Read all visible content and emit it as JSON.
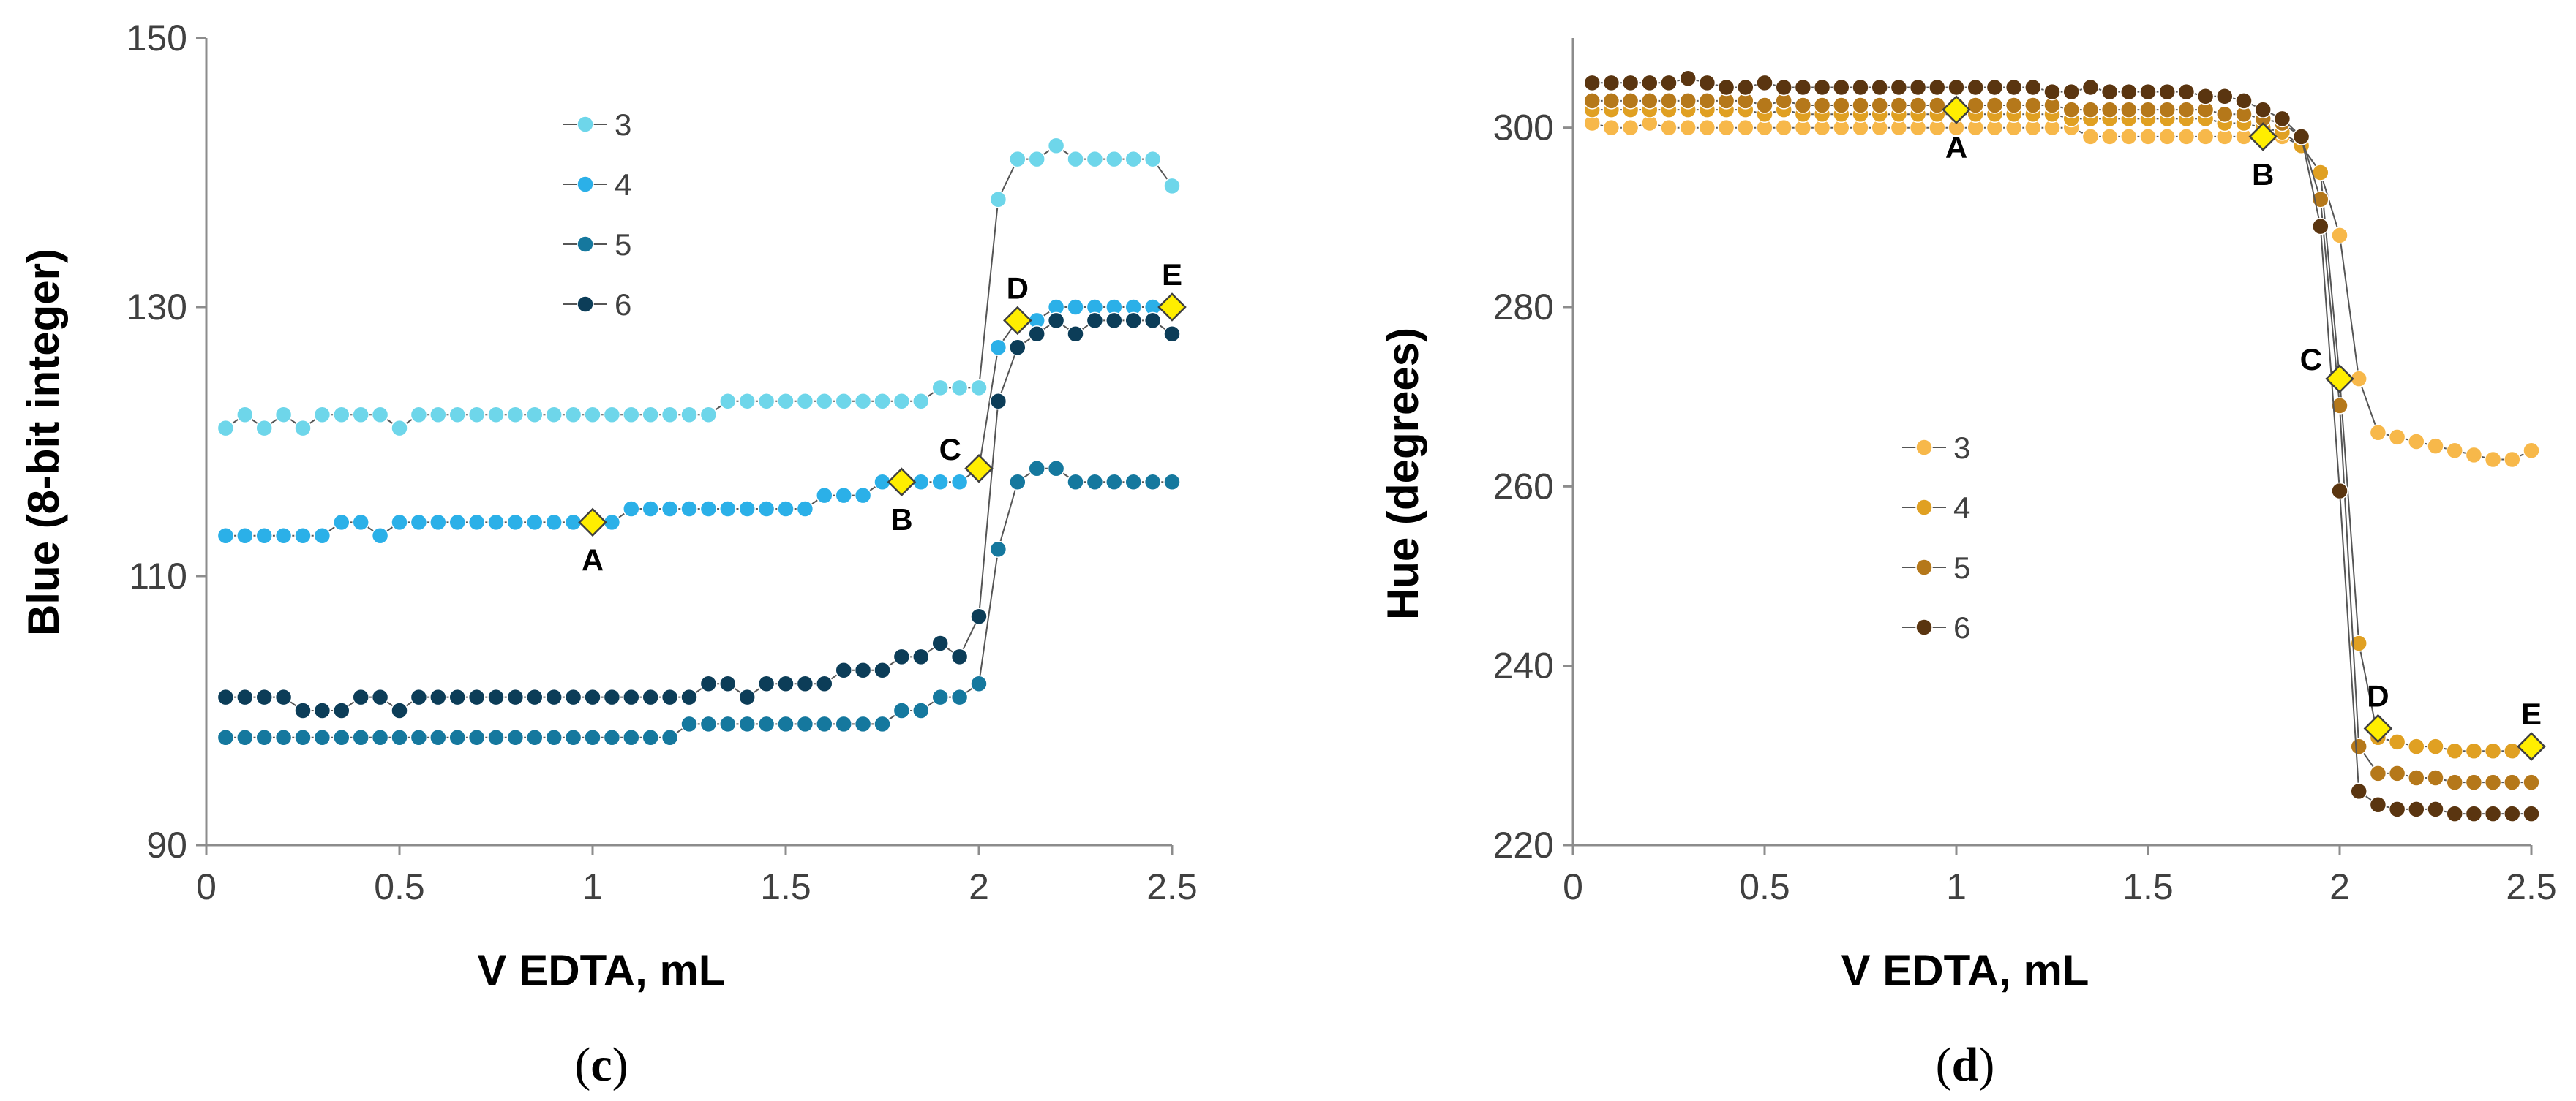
{
  "chart_data": [
    {
      "type": "line",
      "id": "c",
      "caption_open": "(",
      "caption_letter": "c",
      "caption_close": ")",
      "xlabel": "V EDTA, mL",
      "ylabel": "Blue (8-bit integer)",
      "xlim": [
        0,
        2.5
      ],
      "ylim": [
        90,
        150
      ],
      "xticks": [
        0,
        0.5,
        1,
        1.5,
        2,
        2.5
      ],
      "xtick_labels": [
        "0",
        "0.5",
        "1",
        "1.5",
        "2",
        "2.5"
      ],
      "yticks": [
        90,
        110,
        130,
        150
      ],
      "ytick_labels": [
        "90",
        "110",
        "130",
        "150"
      ],
      "x": [
        0.05,
        0.1,
        0.15,
        0.2,
        0.25,
        0.3,
        0.35,
        0.4,
        0.45,
        0.5,
        0.55,
        0.6,
        0.65,
        0.7,
        0.75,
        0.8,
        0.85,
        0.9,
        0.95,
        1.0,
        1.05,
        1.1,
        1.15,
        1.2,
        1.25,
        1.3,
        1.35,
        1.4,
        1.45,
        1.5,
        1.55,
        1.6,
        1.65,
        1.7,
        1.75,
        1.8,
        1.85,
        1.9,
        1.95,
        2.0,
        2.05,
        2.1,
        2.15,
        2.2,
        2.25,
        2.3,
        2.35,
        2.4,
        2.45,
        2.5
      ],
      "legend_position": "top-center",
      "series": [
        {
          "name": "3",
          "color": "#6ed6ea",
          "values": [
            121,
            122,
            121,
            122,
            121,
            122,
            122,
            122,
            122,
            121,
            122,
            122,
            122,
            122,
            122,
            122,
            122,
            122,
            122,
            122,
            122,
            122,
            122,
            122,
            122,
            122,
            123,
            123,
            123,
            123,
            123,
            123,
            123,
            123,
            123,
            123,
            123,
            124,
            124,
            124,
            138,
            141,
            141,
            142,
            141,
            141,
            141,
            141,
            141,
            139
          ]
        },
        {
          "name": "4",
          "color": "#2bb0e8",
          "values": [
            113,
            113,
            113,
            113,
            113,
            113,
            114,
            114,
            113,
            114,
            114,
            114,
            114,
            114,
            114,
            114,
            114,
            114,
            114,
            114,
            114,
            115,
            115,
            115,
            115,
            115,
            115,
            115,
            115,
            115,
            115,
            116,
            116,
            116,
            117,
            117,
            117,
            117,
            117,
            118,
            127,
            129,
            129,
            130,
            130,
            130,
            130,
            130,
            130,
            130
          ]
        },
        {
          "name": "5",
          "color": "#15789e",
          "values": [
            98,
            98,
            98,
            98,
            98,
            98,
            98,
            98,
            98,
            98,
            98,
            98,
            98,
            98,
            98,
            98,
            98,
            98,
            98,
            98,
            98,
            98,
            98,
            98,
            99,
            99,
            99,
            99,
            99,
            99,
            99,
            99,
            99,
            99,
            99,
            100,
            100,
            101,
            101,
            102,
            112,
            117,
            118,
            118,
            117,
            117,
            117,
            117,
            117,
            117
          ]
        },
        {
          "name": "6",
          "color": "#0c3d58",
          "values": [
            101,
            101,
            101,
            101,
            100,
            100,
            100,
            101,
            101,
            100,
            101,
            101,
            101,
            101,
            101,
            101,
            101,
            101,
            101,
            101,
            101,
            101,
            101,
            101,
            101,
            102,
            102,
            101,
            102,
            102,
            102,
            102,
            103,
            103,
            103,
            104,
            104,
            105,
            104,
            107,
            123,
            127,
            128,
            129,
            128,
            129,
            129,
            129,
            129,
            128
          ]
        }
      ],
      "annotations": [
        {
          "label": "A",
          "x": 1.0,
          "y": 114,
          "pos": "below"
        },
        {
          "label": "B",
          "x": 1.8,
          "y": 117,
          "pos": "below"
        },
        {
          "label": "C",
          "x": 2.0,
          "y": 118,
          "pos": "left"
        },
        {
          "label": "D",
          "x": 2.1,
          "y": 129,
          "pos": "above"
        },
        {
          "label": "E",
          "x": 2.5,
          "y": 130,
          "pos": "above"
        }
      ]
    },
    {
      "type": "line",
      "id": "d",
      "caption_open": "(",
      "caption_letter": "d",
      "caption_close": ")",
      "xlabel": "V EDTA, mL",
      "ylabel": "Hue (degrees)",
      "xlim": [
        0,
        2.5
      ],
      "ylim": [
        220,
        310
      ],
      "xticks": [
        0,
        0.5,
        1,
        1.5,
        2,
        2.5
      ],
      "xtick_labels": [
        "0",
        "0.5",
        "1",
        "1.5",
        "2",
        "2.5"
      ],
      "yticks": [
        220,
        240,
        260,
        280,
        300
      ],
      "ytick_labels": [
        "220",
        "240",
        "260",
        "280",
        "300"
      ],
      "x": [
        0.05,
        0.1,
        0.15,
        0.2,
        0.25,
        0.3,
        0.35,
        0.4,
        0.45,
        0.5,
        0.55,
        0.6,
        0.65,
        0.7,
        0.75,
        0.8,
        0.85,
        0.9,
        0.95,
        1.0,
        1.05,
        1.1,
        1.15,
        1.2,
        1.25,
        1.3,
        1.35,
        1.4,
        1.45,
        1.5,
        1.55,
        1.6,
        1.65,
        1.7,
        1.75,
        1.8,
        1.85,
        1.9,
        1.95,
        2.0,
        2.05,
        2.1,
        2.15,
        2.2,
        2.25,
        2.3,
        2.35,
        2.4,
        2.45,
        2.5
      ],
      "legend_position": "center-left",
      "series": [
        {
          "name": "3",
          "color": "#f7b84a",
          "values": [
            300.5,
            300,
            300,
            300.5,
            300,
            300,
            300,
            300,
            300,
            300,
            300,
            300,
            300,
            300,
            300,
            300,
            300,
            300,
            300,
            300,
            300,
            300,
            300,
            300,
            300,
            300,
            299,
            299,
            299,
            299,
            299,
            299,
            299,
            299,
            299,
            299,
            299,
            298,
            295,
            288,
            272,
            266,
            265.5,
            265,
            264.5,
            264,
            263.5,
            263,
            263,
            264
          ]
        },
        {
          "name": "4",
          "color": "#e0a022",
          "values": [
            302,
            302,
            302,
            302,
            302,
            302,
            302,
            302,
            302,
            301.5,
            302,
            301.5,
            301.5,
            301.5,
            301.5,
            301.5,
            301.5,
            301.5,
            301.5,
            301.5,
            301.5,
            301.5,
            301.5,
            301.5,
            301.5,
            301,
            301,
            301,
            301,
            301,
            301,
            301,
            301,
            300.5,
            300.5,
            300,
            299.5,
            298,
            295,
            272,
            242.5,
            232,
            231.5,
            231,
            231,
            230.5,
            230.5,
            230.5,
            230.5,
            231
          ]
        },
        {
          "name": "5",
          "color": "#b5781a",
          "values": [
            303,
            303,
            303,
            303,
            303,
            303,
            303,
            303,
            303,
            302.5,
            303,
            302.5,
            302.5,
            302.5,
            302.5,
            302.5,
            302.5,
            302.5,
            302.5,
            302.5,
            302.5,
            302.5,
            302.5,
            302.5,
            302.5,
            302,
            302,
            302,
            302,
            302,
            302,
            302,
            302,
            301.5,
            301.5,
            301,
            300.5,
            299,
            292,
            269,
            231,
            228,
            228,
            227.5,
            227.5,
            227,
            227,
            227,
            227,
            227
          ]
        },
        {
          "name": "6",
          "color": "#5a3510",
          "values": [
            305,
            305,
            305,
            305,
            305,
            305.5,
            305,
            304.5,
            304.5,
            305,
            304.5,
            304.5,
            304.5,
            304.5,
            304.5,
            304.5,
            304.5,
            304.5,
            304.5,
            304.5,
            304.5,
            304.5,
            304.5,
            304.5,
            304,
            304,
            304.5,
            304,
            304,
            304,
            304,
            304,
            303.5,
            303.5,
            303,
            302,
            301,
            299,
            289,
            259.5,
            226,
            224.5,
            224,
            224,
            224,
            223.5,
            223.5,
            223.5,
            223.5,
            223.5
          ]
        }
      ],
      "annotations": [
        {
          "label": "A",
          "x": 1.0,
          "y": 302,
          "pos": "below"
        },
        {
          "label": "B",
          "x": 1.8,
          "y": 299,
          "pos": "below"
        },
        {
          "label": "C",
          "x": 2.0,
          "y": 272,
          "pos": "left"
        },
        {
          "label": "D",
          "x": 2.1,
          "y": 233,
          "pos": "above"
        },
        {
          "label": "E",
          "x": 2.5,
          "y": 231,
          "pos": "above"
        }
      ]
    }
  ]
}
